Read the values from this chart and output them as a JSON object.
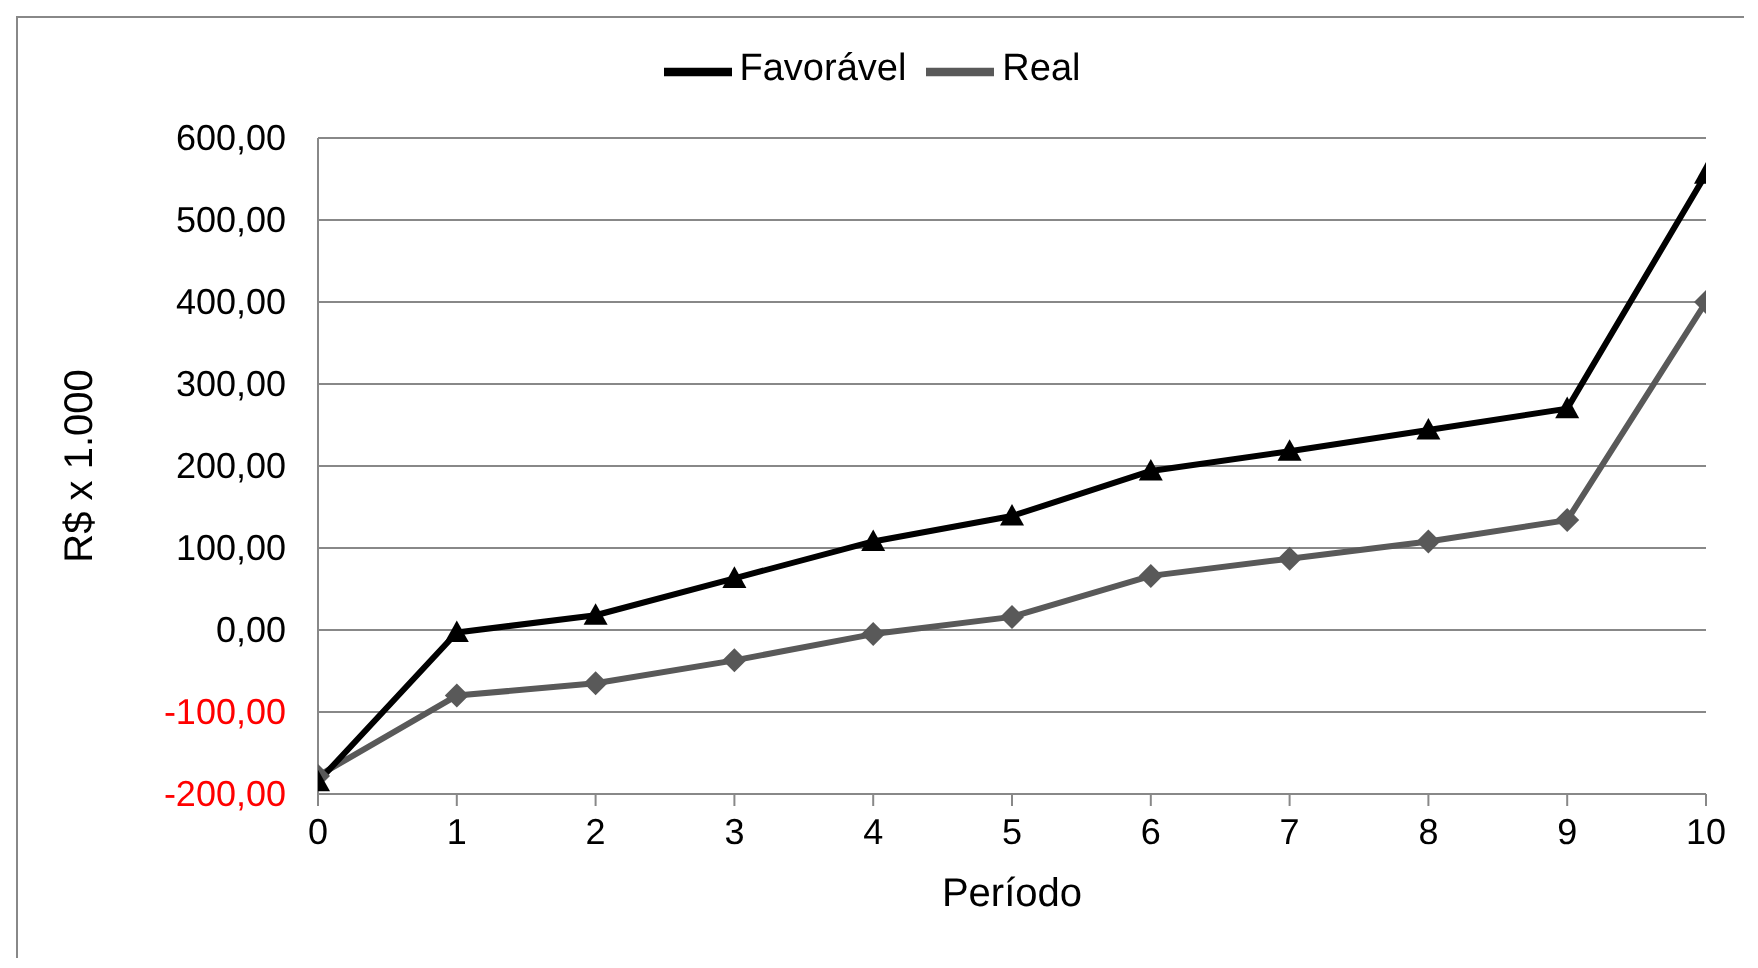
{
  "chart_data": {
    "type": "line",
    "xlabel": "Período",
    "ylabel": "R$ x 1.000",
    "x": [
      0,
      1,
      2,
      3,
      4,
      5,
      6,
      7,
      8,
      9,
      10
    ],
    "series": [
      {
        "name": "Real",
        "color": "#595959",
        "marker": "diamond",
        "values": [
          -178,
          -80,
          -65,
          -37,
          -5,
          16,
          66,
          87,
          108,
          134,
          400
        ]
      },
      {
        "name": "Favorável",
        "color": "#000000",
        "marker": "triangle",
        "values": [
          -185,
          -3,
          18,
          63,
          108,
          139,
          194,
          218,
          244,
          270,
          556
        ]
      }
    ],
    "xlim": [
      0,
      10
    ],
    "xticks": [
      0,
      1,
      2,
      3,
      4,
      5,
      6,
      7,
      8,
      9,
      10
    ],
    "ylim": [
      -200,
      600
    ],
    "yticks": [
      {
        "value": -200,
        "label": "-200,00"
      },
      {
        "value": -100,
        "label": "-100,00"
      },
      {
        "value": 0,
        "label": "0,00"
      },
      {
        "value": 100,
        "label": "100,00"
      },
      {
        "value": 200,
        "label": "200,00"
      },
      {
        "value": 300,
        "label": "300,00"
      },
      {
        "value": 400,
        "label": "400,00"
      },
      {
        "value": 500,
        "label": "500,00"
      },
      {
        "value": 600,
        "label": "600,00"
      }
    ],
    "grid": "y",
    "legend": "top"
  }
}
